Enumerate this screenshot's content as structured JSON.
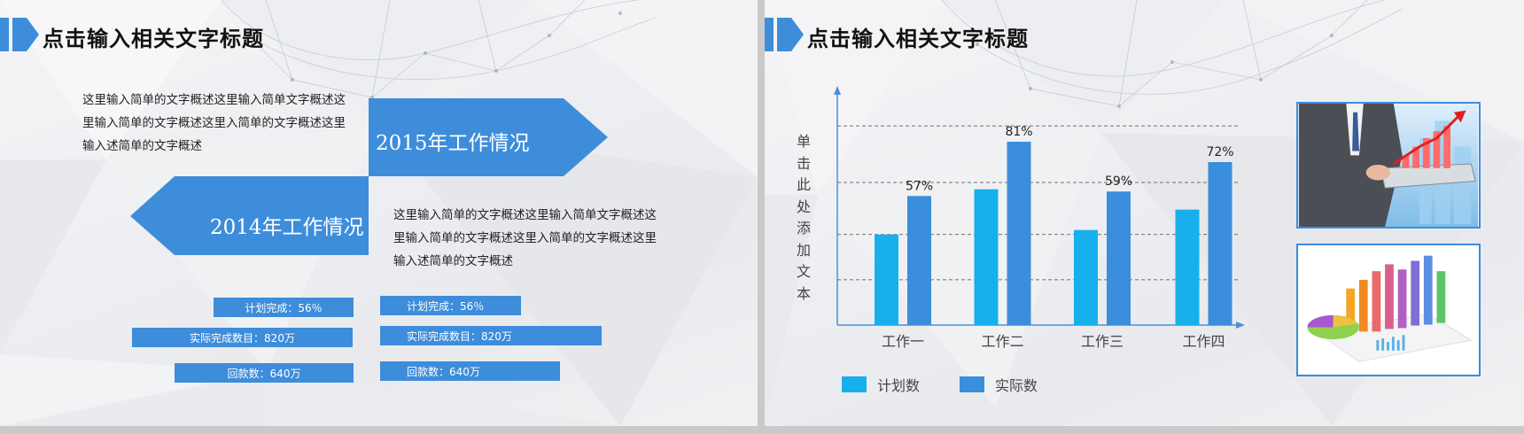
{
  "slides": [
    {
      "title": "点击输入相关文字标题",
      "top_paragraph": "这里输入简单的文字概述这里输入简单文字概述这里输入简单的文字概述这里入简单的文字概述这里输入述简单的文字概述",
      "arrow_2015_label": "2015年工作情况",
      "arrow_2014_label": "2014年工作情况",
      "mid_paragraph": "这里输入简单的文字概述这里输入简单文字概述这里输入简单的文字概述这里入简单的文字概述这里输入述简单的文字概述",
      "stats_left": [
        {
          "label": "计划完成：56％"
        },
        {
          "label": "实际完成数目：820万"
        },
        {
          "label": "回款数：640万"
        }
      ],
      "stats_right": [
        {
          "label": "计划完成：56％"
        },
        {
          "label": "实际完成数目：820万"
        },
        {
          "label": "回款数：640万"
        }
      ]
    },
    {
      "title": "点击输入相关文字标题",
      "photo_1": "business-tablet-growth-photo",
      "photo_2": "3d-bar-pie-chart-illustration"
    }
  ],
  "colors": {
    "accent": "#3d8ddb",
    "plan_color": "#17b0ec",
    "actual_color": "#3b8edb",
    "axis_color": "#4a90d9"
  },
  "chart_data": {
    "type": "bar",
    "categories": [
      "工作一",
      "工作二",
      "工作三",
      "工作四"
    ],
    "series": [
      {
        "name": "计划数",
        "values": [
          40,
          60,
          42,
          51
        ]
      },
      {
        "name": "实际数",
        "values": [
          57,
          81,
          59,
          72
        ]
      }
    ],
    "data_labels": [
      "57%",
      "81%",
      "59%",
      "72%"
    ],
    "ylabel": "单击此处添加文本",
    "ylim": [
      0,
      90
    ],
    "gridlines": [
      20,
      40,
      63,
      88
    ],
    "legend_position": "bottom-left"
  }
}
